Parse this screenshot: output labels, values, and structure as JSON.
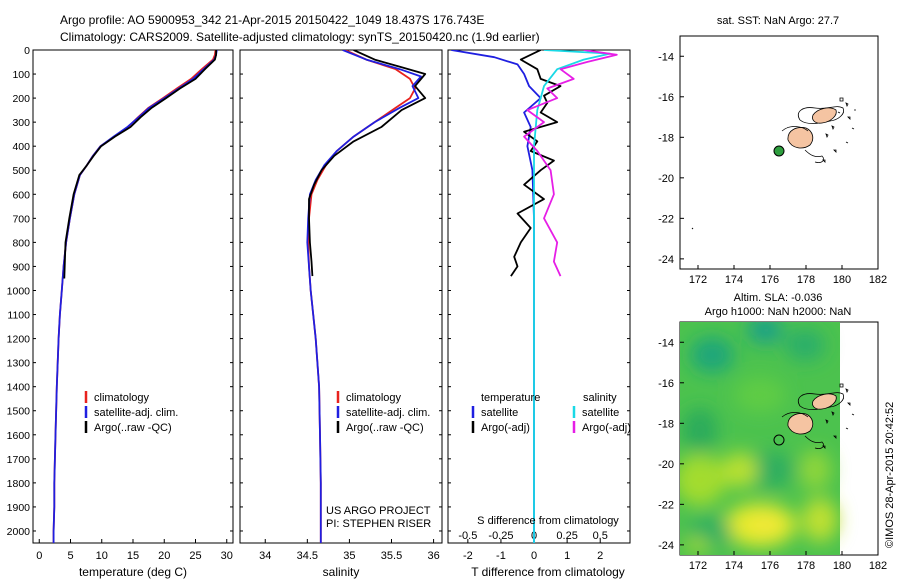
{
  "header": {
    "line1": "Argo profile: AO 5900953_342 21-Apr-2015 20150422_1049 18.437S 176.743E",
    "line2": "Climatology: CARS2009. Satellite-adjusted climatology: synTS_20150420.nc (1.9d earlier)"
  },
  "colors": {
    "climatology": "#e8221e",
    "satellite": "#1f1fe0",
    "argo": "#000000",
    "salinity_satellite": "#19d9e6",
    "salinity_argo": "#e61ee6",
    "land": "#f5c4a2",
    "float_marker": "#2e9e3e"
  },
  "chart_data": [
    {
      "type": "line",
      "panel": "temperature",
      "xlabel": "temperature (deg C)",
      "ylabel": "",
      "xlim": [
        -1,
        31
      ],
      "ylim": [
        2050,
        0
      ],
      "xticks": [
        0,
        5,
        10,
        15,
        20,
        25,
        30
      ],
      "yticks": [
        0,
        100,
        200,
        300,
        400,
        500,
        600,
        700,
        800,
        900,
        1000,
        1100,
        1200,
        1300,
        1400,
        1500,
        1600,
        1700,
        1800,
        1900,
        2000
      ],
      "legend": [
        "climatology",
        "satellite-adj. clim.",
        "Argo(..raw -QC)"
      ],
      "series": [
        {
          "name": "climatology",
          "color_key": "climatology",
          "x": [
            28.2,
            28.1,
            27.8,
            26.0,
            24.3,
            22.0,
            19.8,
            17.5,
            15.8,
            14.2,
            12.0,
            9.8,
            8.6,
            7.6,
            6.5,
            5.6,
            4.9,
            4.3,
            3.9,
            3.6,
            3.3,
            3.1,
            2.8,
            2.6,
            2.5,
            2.4,
            2.4,
            2.3,
            2.3
          ],
          "y": [
            0,
            20,
            40,
            80,
            120,
            160,
            200,
            240,
            280,
            320,
            360,
            400,
            440,
            480,
            520,
            600,
            700,
            800,
            900,
            1000,
            1100,
            1200,
            1400,
            1600,
            1700,
            1800,
            1900,
            2000,
            2050
          ]
        },
        {
          "name": "satellite-adj. clim.",
          "color_key": "satellite",
          "x": [
            28.4,
            28.3,
            28.0,
            26.3,
            24.6,
            22.3,
            20.0,
            17.6,
            15.9,
            14.1,
            11.9,
            9.8,
            8.6,
            7.6,
            6.5,
            5.6,
            4.9,
            4.3,
            3.9,
            3.6,
            3.3,
            3.1,
            2.8,
            2.6,
            2.5,
            2.4,
            2.4,
            2.3,
            2.3
          ],
          "y": [
            0,
            20,
            40,
            80,
            120,
            160,
            200,
            240,
            280,
            320,
            360,
            400,
            440,
            480,
            520,
            600,
            700,
            800,
            900,
            1000,
            1100,
            1200,
            1400,
            1600,
            1700,
            1800,
            1900,
            2000,
            2050
          ]
        },
        {
          "name": "Argo(..raw -QC)",
          "color_key": "argo",
          "x": [
            28.3,
            28.3,
            28.1,
            26.5,
            25.0,
            22.5,
            20.3,
            18.0,
            16.2,
            14.6,
            12.1,
            9.9,
            8.7,
            7.6,
            6.4,
            5.5,
            4.8,
            4.2,
            4.0
          ],
          "y": [
            0,
            20,
            40,
            80,
            120,
            160,
            200,
            240,
            280,
            320,
            360,
            400,
            440,
            480,
            520,
            600,
            700,
            800,
            950
          ]
        }
      ]
    },
    {
      "type": "line",
      "panel": "salinity",
      "xlabel": "salinity",
      "ylabel": "",
      "xlim": [
        33.7,
        36.1
      ],
      "ylim": [
        2050,
        0
      ],
      "xticks": [
        34,
        34.5,
        35,
        35.5,
        36
      ],
      "legend": [
        "climatology",
        "satellite-adj. clim.",
        "Argo(..raw -QC)"
      ],
      "series": [
        {
          "name": "climatology",
          "color_key": "climatology",
          "x": [
            34.95,
            35.2,
            35.55,
            35.72,
            35.78,
            35.72,
            35.55,
            35.3,
            35.05,
            34.85,
            34.72,
            34.62,
            34.55,
            34.52,
            34.51,
            34.52,
            34.54,
            34.57,
            34.6,
            34.62,
            34.64,
            34.65,
            34.66,
            34.66
          ],
          "y": [
            0,
            40,
            80,
            120,
            160,
            200,
            240,
            300,
            360,
            420,
            480,
            540,
            600,
            700,
            800,
            900,
            1000,
            1100,
            1200,
            1300,
            1400,
            1600,
            1800,
            2050
          ]
        },
        {
          "name": "satellite-adj. clim.",
          "color_key": "satellite",
          "x": [
            34.92,
            35.2,
            35.6,
            35.85,
            35.75,
            35.82,
            35.6,
            35.3,
            35.05,
            34.85,
            34.7,
            34.6,
            34.53,
            34.51,
            34.5,
            34.52,
            34.54,
            34.57,
            34.6,
            34.62,
            34.64,
            34.65,
            34.66,
            34.66
          ],
          "y": [
            0,
            40,
            80,
            110,
            150,
            200,
            240,
            300,
            360,
            420,
            480,
            540,
            600,
            700,
            800,
            900,
            1000,
            1100,
            1200,
            1300,
            1400,
            1600,
            1800,
            2050
          ]
        },
        {
          "name": "Argo(..raw -QC)",
          "color_key": "argo",
          "x": [
            35.05,
            35.3,
            35.6,
            35.9,
            35.78,
            35.9,
            35.62,
            35.38,
            35.05,
            34.82,
            34.67,
            34.58,
            34.52,
            34.52,
            34.53,
            34.55,
            34.56
          ],
          "y": [
            0,
            40,
            70,
            100,
            150,
            200,
            250,
            320,
            380,
            440,
            500,
            560,
            620,
            700,
            800,
            880,
            940
          ]
        }
      ]
    },
    {
      "type": "line",
      "panel": "difference",
      "xlabel": "T difference from climatology",
      "xlabel_top": "S difference from climatology",
      "ylabel": "",
      "xlim": [
        -2.6,
        2.9
      ],
      "ylim": [
        2050,
        0
      ],
      "xticks_T": [
        -2,
        -1,
        0,
        1,
        2
      ],
      "xticks_S": [
        -0.5,
        -0.25,
        0,
        0.25,
        0.5
      ],
      "legend_temperature": [
        "satellite",
        "Argo(-adj)"
      ],
      "legend_salinity": [
        "satellite",
        "Argo(-adj)"
      ],
      "legend_headers": [
        "temperature",
        "salinity"
      ],
      "series": [
        {
          "name": "satellite",
          "group": "temperature",
          "color_key": "satellite",
          "x": [
            -2.5,
            -1.2,
            -0.5,
            -0.3,
            -0.15,
            0.2,
            -0.3,
            -0.1,
            -0.2,
            -0.05,
            0.0,
            0.0,
            0.0
          ],
          "y": [
            0,
            30,
            60,
            100,
            150,
            200,
            260,
            320,
            400,
            500,
            700,
            1000,
            2050
          ]
        },
        {
          "name": "Argo(-adj)",
          "group": "temperature",
          "color_key": "argo",
          "x": [
            0.2,
            -0.4,
            0.1,
            0.2,
            0.8,
            0.3,
            0.4,
            0.2,
            0.7,
            -0.3,
            0.1,
            -0.1,
            0.6,
            0.2,
            -0.3,
            0.3,
            -0.5,
            -0.1,
            -0.4,
            -0.6,
            -0.5,
            -0.7
          ],
          "y": [
            0,
            40,
            80,
            120,
            150,
            190,
            220,
            260,
            300,
            340,
            380,
            420,
            460,
            500,
            560,
            620,
            680,
            740,
            800,
            860,
            900,
            940
          ]
        },
        {
          "name": "satellite",
          "group": "salinity",
          "color_key": "salinity_satellite",
          "x": [
            0.3,
            2.3,
            1.5,
            0.7,
            0.3,
            0.1,
            0.0,
            0.0,
            0.0,
            0.0
          ],
          "y": [
            0,
            15,
            40,
            80,
            150,
            250,
            400,
            700,
            1000,
            2050
          ]
        },
        {
          "name": "Argo(-adj)",
          "group": "salinity",
          "color_key": "salinity_argo",
          "x": [
            1.5,
            2.5,
            1.6,
            0.8,
            1.2,
            0.4,
            0.7,
            -0.2,
            0.3,
            -0.3,
            0.1,
            0.5,
            0.6,
            0.3,
            0.7,
            0.6,
            0.8
          ],
          "y": [
            0,
            20,
            50,
            80,
            120,
            160,
            200,
            250,
            300,
            360,
            420,
            500,
            600,
            700,
            800,
            880,
            940
          ]
        }
      ]
    }
  ],
  "maps": {
    "top": {
      "title": "sat. SST: NaN Argo: 27.7",
      "xticks": [
        172,
        174,
        176,
        178,
        180,
        182
      ],
      "yticks": [
        -14,
        -16,
        -18,
        -20,
        -22,
        -24
      ],
      "xlim": [
        171,
        182
      ],
      "ylim": [
        -24.5,
        -13
      ],
      "float_lon": 176.743,
      "float_lat": -18.437
    },
    "bottom": {
      "title_line1": "Altim. SLA: -0.036",
      "title_line2": "Argo h1000: NaN h2000: NaN",
      "xticks": [
        172,
        174,
        176,
        178,
        180,
        182
      ],
      "yticks": [
        -14,
        -16,
        -18,
        -20,
        -22,
        -24
      ],
      "xlim": [
        171,
        182
      ],
      "ylim": [
        -24.5,
        -13
      ],
      "float_lon": 176.743,
      "float_lat": -18.437
    }
  },
  "annotations": {
    "project_line1": "US ARGO PROJECT",
    "project_line2": "PI: STEPHEN RISER",
    "credit": "©IMOS 28-Apr-2015 20:42:52"
  }
}
